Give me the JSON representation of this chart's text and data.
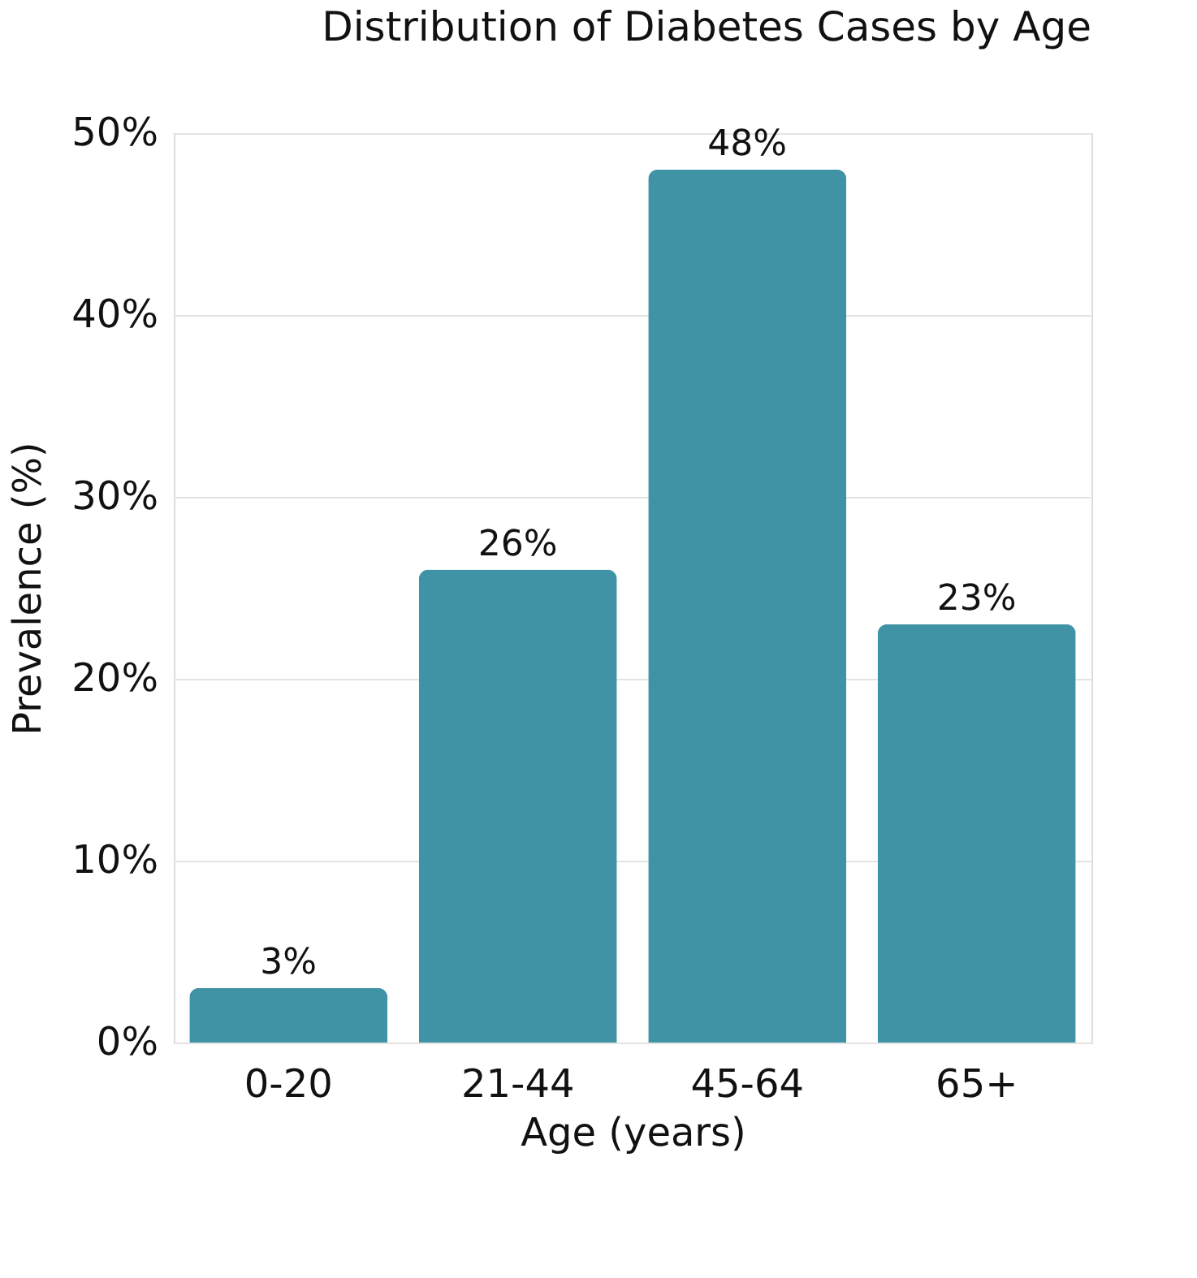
{
  "chart_data": {
    "type": "bar",
    "title": "Distribution of Diabetes Cases by Age",
    "xlabel": "Age (years)",
    "ylabel": "Prevalence (%)",
    "categories": [
      "0-20",
      "21-44",
      "45-64",
      "65+"
    ],
    "values": [
      3,
      26,
      48,
      23
    ],
    "color": "#4093a5",
    "ylim": [
      0,
      50
    ],
    "yticks": [
      {
        "value": 0,
        "label": "0%"
      },
      {
        "value": 10,
        "label": "10%"
      },
      {
        "value": 20,
        "label": "20%"
      },
      {
        "value": 30,
        "label": "30%"
      },
      {
        "value": 40,
        "label": "40%"
      },
      {
        "value": 50,
        "label": "50%"
      }
    ],
    "value_labels": [
      "3%",
      "26%",
      "48%",
      "23%"
    ],
    "grid": "y"
  }
}
